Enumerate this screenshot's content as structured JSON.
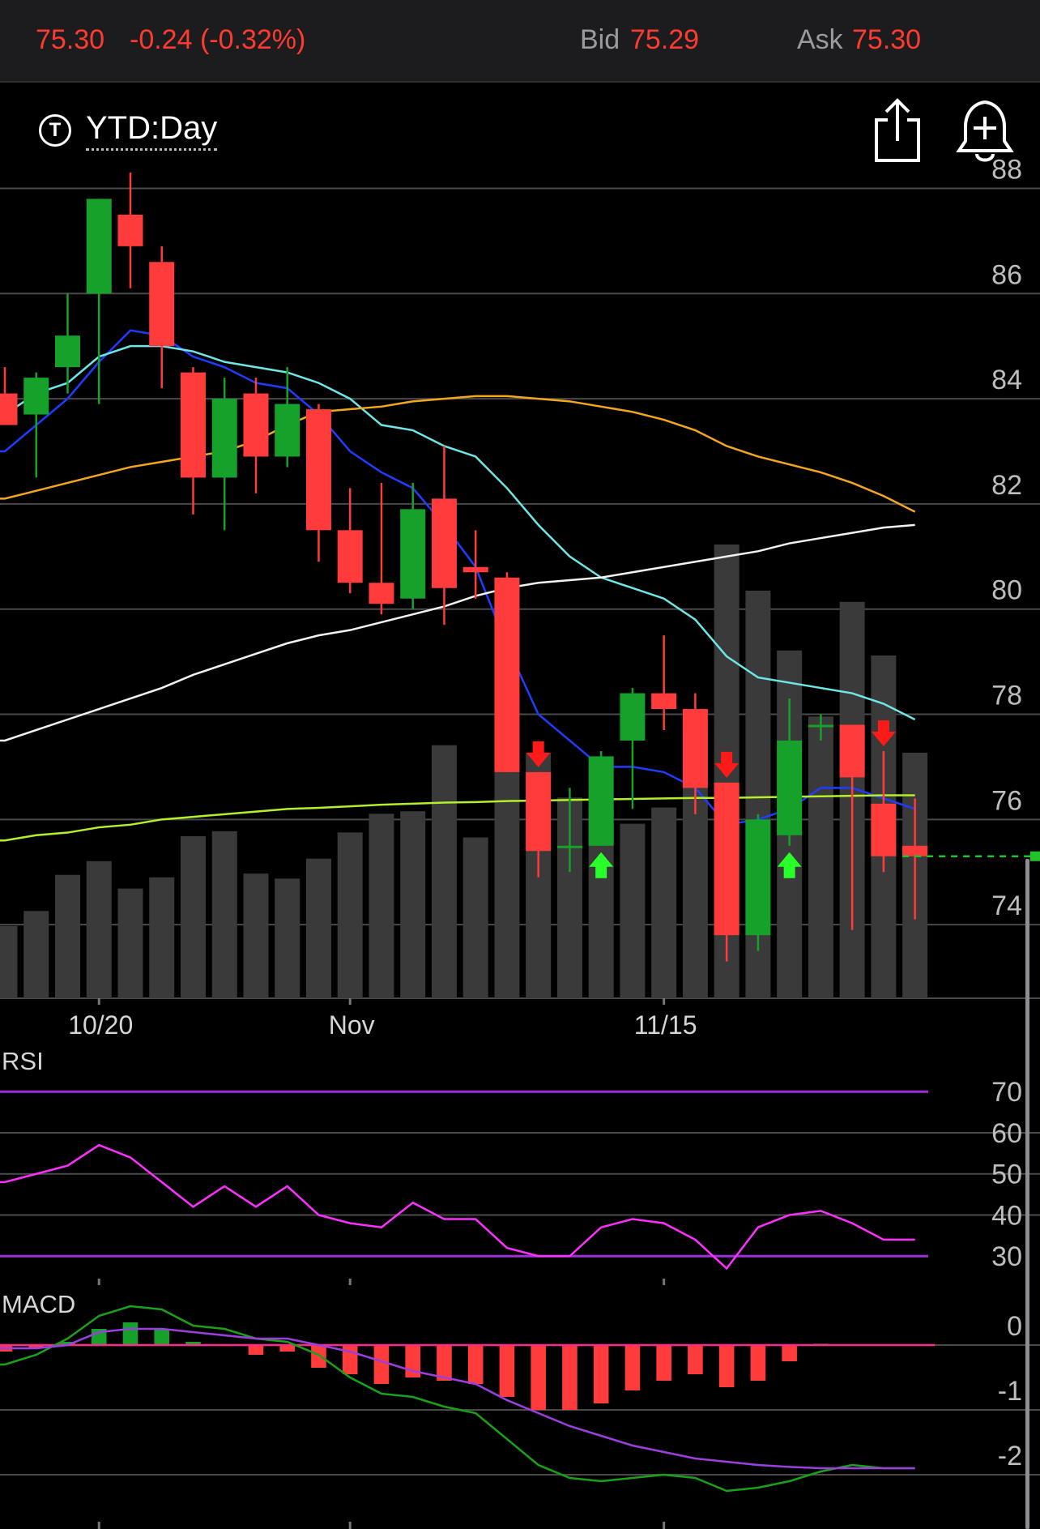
{
  "quote": {
    "price": "75.30",
    "change": "-0.24 (-0.32%)",
    "bid_label": "Bid",
    "bid": "75.29",
    "ask_label": "Ask",
    "ask": "75.30"
  },
  "toolbar": {
    "range_icon_letter": "T",
    "range_label": "YTD:Day",
    "share_icon": "share-icon",
    "alert_icon": "bell-plus-icon"
  },
  "colors": {
    "up": "#16a12a",
    "down": "#ff3b3b",
    "volume": "#3a3a3a",
    "ma_blue": "#1f3dff",
    "ma_cyan": "#6fe6e6",
    "ma_orange": "#f4a71e",
    "ma_white": "#f2f2f2",
    "ma_yellowgreen": "#b5ef2a",
    "rsi_line": "#ff30ff",
    "rsi_band": "#9b30d8",
    "macd_line": "#1aa11a",
    "macd_signal": "#9b3fe0"
  },
  "chart_data": [
    {
      "type": "candlestick",
      "x_ticks": [
        "10/20",
        "Nov",
        "11/15"
      ],
      "y_ticks": [
        "88",
        "86",
        "84",
        "82",
        "80",
        "78",
        "76",
        "74"
      ],
      "ylim": [
        72.6,
        88.5
      ],
      "last_price": 75.3,
      "candles": [
        {
          "o": 84.1,
          "h": 84.6,
          "l": 83.5,
          "c": 83.5
        },
        {
          "o": 83.7,
          "h": 84.5,
          "l": 82.5,
          "c": 84.4
        },
        {
          "o": 84.6,
          "h": 86.0,
          "l": 84.1,
          "c": 85.2
        },
        {
          "o": 86.0,
          "h": 87.8,
          "l": 83.9,
          "c": 87.8
        },
        {
          "o": 87.5,
          "h": 88.3,
          "l": 86.1,
          "c": 86.9
        },
        {
          "o": 86.6,
          "h": 86.9,
          "l": 84.2,
          "c": 85.0
        },
        {
          "o": 84.5,
          "h": 84.6,
          "l": 81.8,
          "c": 82.5
        },
        {
          "o": 82.5,
          "h": 84.4,
          "l": 81.5,
          "c": 84.0
        },
        {
          "o": 84.1,
          "h": 84.4,
          "l": 82.2,
          "c": 82.9
        },
        {
          "o": 82.9,
          "h": 84.6,
          "l": 82.7,
          "c": 83.9
        },
        {
          "o": 83.8,
          "h": 83.9,
          "l": 80.9,
          "c": 81.5
        },
        {
          "o": 81.5,
          "h": 82.3,
          "l": 80.3,
          "c": 80.5
        },
        {
          "o": 80.5,
          "h": 82.4,
          "l": 79.9,
          "c": 80.1
        },
        {
          "o": 80.2,
          "h": 82.4,
          "l": 80.0,
          "c": 81.9
        },
        {
          "o": 82.1,
          "h": 83.1,
          "l": 79.7,
          "c": 80.4
        },
        {
          "o": 80.8,
          "h": 81.5,
          "l": 80.2,
          "c": 80.7
        },
        {
          "o": 80.6,
          "h": 80.7,
          "l": 76.9,
          "c": 76.9
        },
        {
          "o": 76.9,
          "h": 76.9,
          "l": 74.9,
          "c": 75.4
        },
        {
          "o": 75.5,
          "h": 76.6,
          "l": 75.0,
          "c": 75.5
        },
        {
          "o": 75.5,
          "h": 77.3,
          "l": 75.5,
          "c": 77.2
        },
        {
          "o": 77.5,
          "h": 78.5,
          "l": 76.2,
          "c": 78.4
        },
        {
          "o": 78.4,
          "h": 79.5,
          "l": 77.7,
          "c": 78.1
        },
        {
          "o": 78.1,
          "h": 78.4,
          "l": 76.1,
          "c": 76.6
        },
        {
          "o": 76.7,
          "h": 76.7,
          "l": 73.3,
          "c": 73.8
        },
        {
          "o": 73.8,
          "h": 76.1,
          "l": 73.5,
          "c": 76.0
        },
        {
          "o": 75.7,
          "h": 78.3,
          "l": 75.5,
          "c": 77.5
        },
        {
          "o": 77.8,
          "h": 78.0,
          "l": 77.5,
          "c": 77.8
        },
        {
          "o": 77.8,
          "h": 77.8,
          "l": 73.9,
          "c": 76.8
        },
        {
          "o": 76.3,
          "h": 77.3,
          "l": 75.0,
          "c": 75.3
        },
        {
          "o": 75.5,
          "h": 76.4,
          "l": 74.1,
          "c": 75.3
        }
      ],
      "volume": [
        58,
        70,
        99,
        110,
        88,
        97,
        130,
        134,
        100,
        96,
        112,
        133,
        148,
        150,
        203,
        129,
        182,
        197,
        161,
        154,
        140,
        153,
        216,
        364,
        327,
        279,
        226,
        318,
        275,
        197
      ],
      "signals": {
        "down": [
          17,
          23,
          28
        ],
        "up": [
          19,
          25
        ]
      },
      "moving_averages": [
        {
          "color_key": "ma_blue",
          "values": [
            83.0,
            83.5,
            84.0,
            84.7,
            85.3,
            85.2,
            84.8,
            84.6,
            84.3,
            84.2,
            83.7,
            83.0,
            82.6,
            82.3,
            81.6,
            80.8,
            79.3,
            78.0,
            77.5,
            77.0,
            77.0,
            76.9,
            76.6,
            75.9,
            76.0,
            76.2,
            76.6,
            76.6,
            76.4,
            76.2
          ]
        },
        {
          "color_key": "ma_cyan",
          "values": [
            83.7,
            84.1,
            84.3,
            84.8,
            85.0,
            85.0,
            84.9,
            84.7,
            84.6,
            84.5,
            84.3,
            84.0,
            83.5,
            83.4,
            83.1,
            82.9,
            82.3,
            81.6,
            81.0,
            80.6,
            80.4,
            80.2,
            79.8,
            79.1,
            78.7,
            78.6,
            78.5,
            78.4,
            78.2,
            77.9
          ]
        },
        {
          "color_key": "ma_orange",
          "values": [
            82.1,
            82.25,
            82.4,
            82.55,
            82.7,
            82.8,
            82.9,
            83.0,
            83.2,
            83.5,
            83.75,
            83.8,
            83.85,
            83.95,
            84.0,
            84.05,
            84.05,
            84.0,
            83.95,
            83.85,
            83.75,
            83.6,
            83.4,
            83.1,
            82.9,
            82.75,
            82.6,
            82.4,
            82.15,
            81.85
          ]
        },
        {
          "color_key": "ma_white",
          "values": [
            77.5,
            77.7,
            77.9,
            78.1,
            78.3,
            78.5,
            78.75,
            78.95,
            79.15,
            79.35,
            79.5,
            79.6,
            79.75,
            79.9,
            80.05,
            80.25,
            80.4,
            80.5,
            80.55,
            80.6,
            80.7,
            80.8,
            80.9,
            81.0,
            81.1,
            81.25,
            81.35,
            81.45,
            81.55,
            81.6
          ]
        },
        {
          "color_key": "ma_yellowgreen",
          "values": [
            75.6,
            75.7,
            75.75,
            75.85,
            75.9,
            76.0,
            76.05,
            76.1,
            76.15,
            76.2,
            76.22,
            76.25,
            76.28,
            76.3,
            76.32,
            76.33,
            76.35,
            76.36,
            76.37,
            76.38,
            76.39,
            76.4,
            76.41,
            76.41,
            76.42,
            76.43,
            76.44,
            76.45,
            76.46,
            76.46
          ]
        }
      ]
    },
    {
      "type": "line",
      "title": "RSI",
      "y_ticks": [
        "70",
        "60",
        "50",
        "40",
        "30"
      ],
      "ylim": [
        26.5,
        73
      ],
      "bands": [
        70,
        30
      ],
      "values": [
        48,
        50,
        52,
        57,
        54,
        48,
        42,
        47,
        42,
        47,
        40,
        38,
        37,
        43,
        39,
        39,
        32,
        30,
        30,
        37,
        39,
        38,
        34,
        27,
        37,
        40,
        41,
        38,
        34,
        34
      ]
    },
    {
      "type": "bar",
      "title": "MACD",
      "y_ticks": [
        "0",
        "-1",
        "-2"
      ],
      "ylim": [
        -2.6,
        0.5
      ],
      "histogram": [
        -0.1,
        -0.05,
        0.05,
        0.25,
        0.35,
        0.25,
        0.05,
        0.0,
        -0.15,
        -0.1,
        -0.35,
        -0.45,
        -0.6,
        -0.5,
        -0.55,
        -0.6,
        -0.8,
        -1.0,
        -1.0,
        -0.9,
        -0.7,
        -0.55,
        -0.45,
        -0.65,
        -0.55,
        -0.25,
        0.02,
        0.0,
        -0.01,
        -0.01
      ],
      "macd": [
        -0.3,
        -0.15,
        0.1,
        0.45,
        0.6,
        0.55,
        0.3,
        0.25,
        0.1,
        0.05,
        -0.15,
        -0.5,
        -0.75,
        -0.8,
        -0.95,
        -1.05,
        -1.45,
        -1.85,
        -2.05,
        -2.1,
        -2.05,
        -2.0,
        -2.05,
        -2.25,
        -2.2,
        -2.1,
        -1.95,
        -1.85,
        -1.9,
        -1.9
      ],
      "signal": [
        -0.05,
        -0.05,
        0.0,
        0.2,
        0.25,
        0.25,
        0.2,
        0.15,
        0.1,
        0.1,
        0.0,
        -0.1,
        -0.25,
        -0.4,
        -0.5,
        -0.6,
        -0.85,
        -1.05,
        -1.25,
        -1.4,
        -1.55,
        -1.65,
        -1.75,
        -1.8,
        -1.85,
        -1.88,
        -1.9,
        -1.9,
        -1.9,
        -1.9
      ]
    }
  ]
}
